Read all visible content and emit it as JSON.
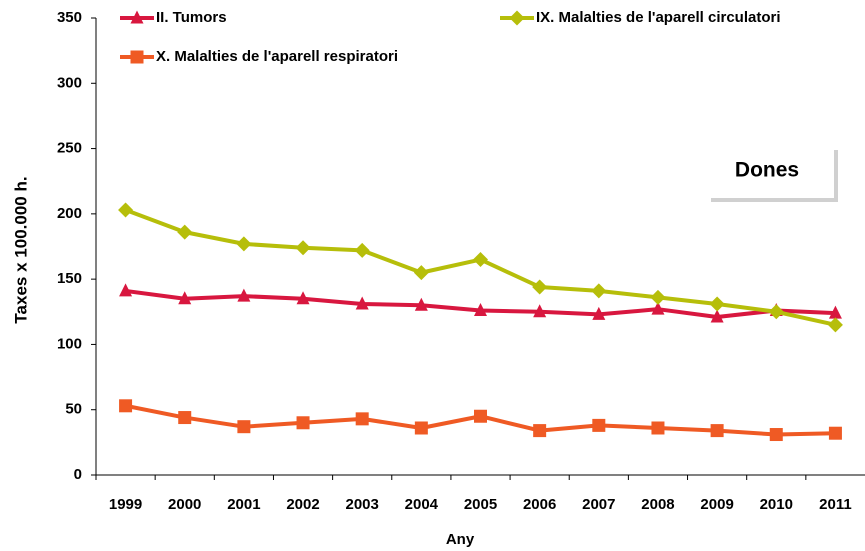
{
  "chart_data": {
    "type": "line",
    "x_label": "Any",
    "y_label": "Taxes x 100.000 h.",
    "annotation": "Dones",
    "categories": [
      "1999",
      "2000",
      "2001",
      "2002",
      "2003",
      "2004",
      "2005",
      "2006",
      "2007",
      "2008",
      "2009",
      "2010",
      "2011"
    ],
    "series": [
      {
        "name": "II. Tumors",
        "color": "#d8173f",
        "marker": "triangle",
        "values": [
          141,
          135,
          137,
          135,
          131,
          130,
          126,
          125,
          123,
          127,
          121,
          126,
          124
        ]
      },
      {
        "name": "IX. Malalties de l'aparell circulatori",
        "color": "#b6be0a",
        "marker": "diamond",
        "values": [
          203,
          186,
          177,
          174,
          172,
          155,
          165,
          144,
          141,
          136,
          131,
          125,
          115
        ]
      },
      {
        "name": "X.  Malalties de l'aparell respiratori",
        "color": "#ef5a24",
        "marker": "square",
        "values": [
          53,
          44,
          37,
          40,
          43,
          36,
          45,
          34,
          38,
          36,
          34,
          31,
          32
        ]
      }
    ],
    "ylim": [
      0,
      350
    ],
    "yticks": [
      0,
      50,
      100,
      150,
      200,
      250,
      300,
      350
    ],
    "grid": false
  }
}
